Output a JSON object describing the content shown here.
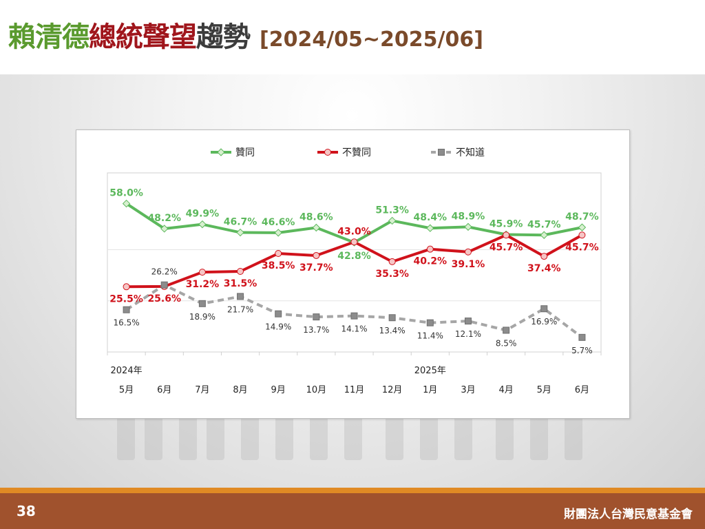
{
  "header": {
    "title_green": "賴清德",
    "title_red": "總統聲望",
    "title_gray": "趨勢",
    "date_range": "[2024/05~2025/06]"
  },
  "footer": {
    "page_number": "38",
    "organization": "財團法人台灣民意基金會"
  },
  "colors": {
    "approve": "#5cb85c",
    "disapprove": "#d0121b",
    "unknown": "#a6a6a6",
    "footer": "#a0522d",
    "footer_accent": "#e08a24"
  },
  "chart_data": {
    "type": "line",
    "categories": [
      "5月",
      "6月",
      "7月",
      "8月",
      "9月",
      "10月",
      "11月",
      "12月",
      "1月",
      "3月",
      "4月",
      "5月",
      "6月"
    ],
    "year_labels": [
      {
        "index": 0,
        "label": "2024年"
      },
      {
        "index": 8,
        "label": "2025年"
      }
    ],
    "ylim": [
      0,
      70
    ],
    "grid_lines": [
      20,
      40
    ],
    "legend_position": "top",
    "series": [
      {
        "name": "贊同",
        "color": "#5cb85c",
        "dash": false,
        "marker": "diamond",
        "values": [
          58.0,
          48.2,
          49.9,
          46.7,
          46.6,
          48.6,
          42.8,
          51.3,
          48.4,
          48.9,
          45.9,
          45.7,
          48.7
        ],
        "labels": [
          "58.0%",
          "48.2%",
          "49.9%",
          "46.7%",
          "46.6%",
          "48.6%",
          "42.8%",
          "51.3%",
          "48.4%",
          "48.9%",
          "45.9%",
          "45.7%",
          "48.7%"
        ]
      },
      {
        "name": "不贊同",
        "color": "#d0121b",
        "dash": false,
        "marker": "circle",
        "values": [
          25.5,
          25.6,
          31.2,
          31.5,
          38.5,
          37.7,
          43.0,
          35.3,
          40.2,
          39.1,
          45.7,
          37.4,
          45.7
        ],
        "labels": [
          "25.5%",
          "25.6%",
          "31.2%",
          "31.5%",
          "38.5%",
          "37.7%",
          "43.0%",
          "35.3%",
          "40.2%",
          "39.1%",
          "45.7%",
          "37.4%",
          "45.7%"
        ]
      },
      {
        "name": "不知道",
        "color": "#a6a6a6",
        "dash": true,
        "marker": "square",
        "values": [
          16.5,
          26.2,
          18.9,
          21.7,
          14.9,
          13.7,
          14.1,
          13.4,
          11.4,
          12.1,
          8.5,
          16.9,
          5.7
        ],
        "labels": [
          "16.5%",
          "26.2%",
          "18.9%",
          "21.7%",
          "14.9%",
          "13.7%",
          "14.1%",
          "13.4%",
          "11.4%",
          "12.1%",
          "8.5%",
          "16.9%",
          "5.7%"
        ]
      }
    ]
  }
}
